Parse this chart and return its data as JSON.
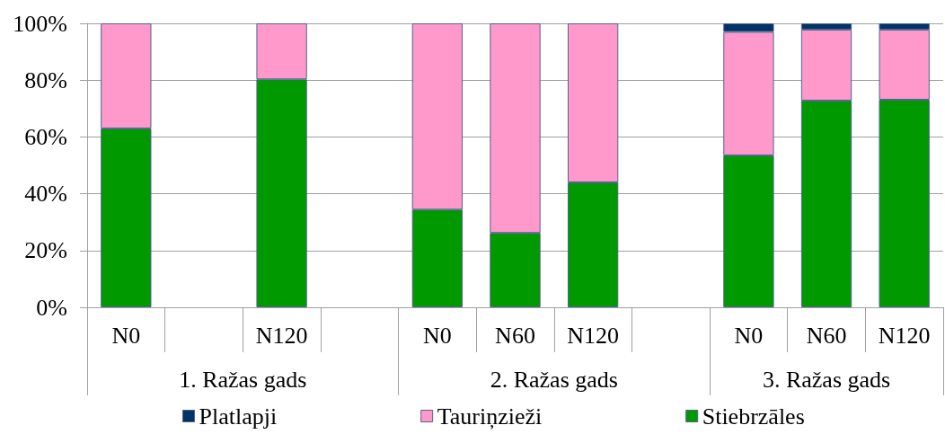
{
  "chart_data": {
    "type": "bar",
    "stacked": true,
    "categories": [
      "N0",
      null,
      "N120",
      null,
      "N0",
      "N60",
      "N120",
      null,
      "N0",
      "N60",
      "N120"
    ],
    "series": [
      {
        "name": "Stiebrzāles",
        "color": "#009900",
        "values": [
          63,
          null,
          80.3,
          null,
          34.4,
          26.2,
          44,
          null,
          53.5,
          72.8,
          73.1
        ]
      },
      {
        "name": "Tauriņzieži",
        "color": "#ff99cc",
        "values": [
          37,
          null,
          19.7,
          null,
          65.6,
          73.8,
          56,
          null,
          43.5,
          25,
          24.7
        ]
      },
      {
        "name": "Platlapji",
        "color": "#003366",
        "values": [
          null,
          null,
          null,
          null,
          null,
          null,
          null,
          null,
          3,
          2.2,
          2.2
        ]
      }
    ],
    "ylim": [
      0,
      100
    ],
    "yticks": [
      {
        "value": 0,
        "label": "0%"
      },
      {
        "value": 20,
        "label": "20%"
      },
      {
        "value": 40,
        "label": "40%"
      },
      {
        "value": 60,
        "label": "60%"
      },
      {
        "value": 80,
        "label": "80%"
      },
      {
        "value": 100,
        "label": "100%"
      }
    ],
    "grid": "y",
    "legend": "bottom",
    "annotations": [
      "1. Ražas gads",
      "2. Ražas gads",
      "3. Ražas gads"
    ]
  }
}
